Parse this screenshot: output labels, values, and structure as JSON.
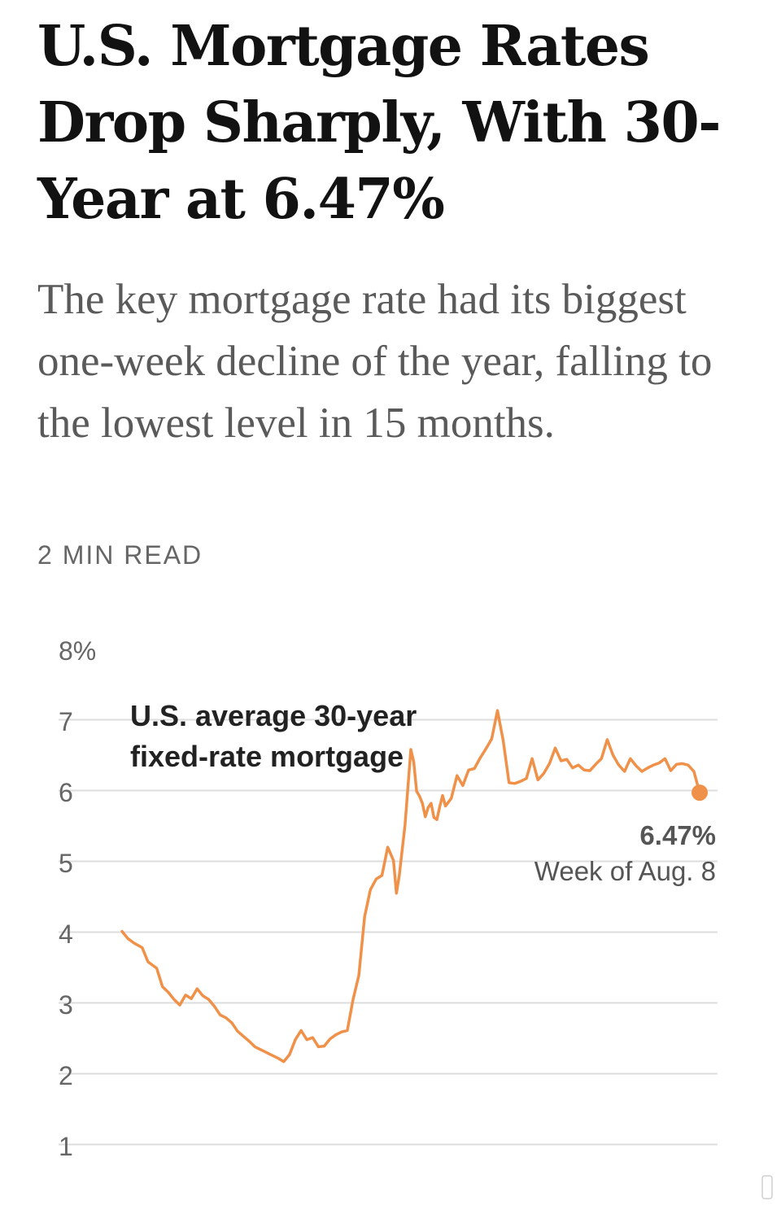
{
  "article": {
    "headline": "U.S. Mortgage Rates Drop Sharply, With 30-Year at 6.47%",
    "summary": "The key mortgage rate had its biggest one-week decline of the year, falling to the lowest level in 15 months.",
    "read_time": "2 MIN READ"
  },
  "chart_data": {
    "type": "line",
    "title": "U.S. average 30-year fixed-rate mortgage",
    "ylim": [
      0.5,
      8
    ],
    "y_ticks": [
      "8%",
      "7",
      "6",
      "5",
      "4",
      "3",
      "2",
      "1"
    ],
    "y_tick_values": [
      8,
      7,
      6,
      5,
      4,
      3,
      2,
      1
    ],
    "grid": true,
    "line_color": "#f0914a",
    "series": [
      {
        "x": [
          0.0,
          0.01,
          0.02,
          0.035,
          0.045,
          0.06,
          0.07,
          0.08,
          0.09,
          0.1,
          0.11,
          0.12,
          0.13,
          0.14,
          0.15,
          0.16,
          0.17,
          0.18,
          0.19,
          0.2,
          0.21,
          0.22,
          0.23,
          0.24,
          0.25,
          0.26,
          0.27,
          0.28,
          0.29,
          0.3,
          0.31,
          0.32,
          0.33,
          0.34,
          0.35,
          0.36,
          0.37,
          0.38,
          0.39,
          0.4,
          0.41,
          0.42,
          0.43,
          0.44,
          0.45,
          0.46,
          0.47,
          0.475,
          0.48,
          0.49,
          0.5,
          0.505,
          0.51,
          0.515,
          0.52,
          0.525,
          0.53,
          0.535,
          0.54,
          0.545,
          0.55,
          0.555,
          0.56,
          0.57,
          0.58,
          0.59,
          0.6,
          0.61,
          0.62,
          0.63,
          0.64,
          0.65,
          0.66,
          0.67,
          0.68,
          0.69,
          0.7,
          0.71,
          0.72,
          0.73,
          0.74,
          0.75,
          0.76,
          0.77,
          0.78,
          0.79,
          0.8,
          0.81,
          0.82,
          0.83,
          0.84,
          0.85,
          0.86,
          0.87,
          0.88,
          0.89,
          0.9,
          0.91,
          0.92,
          0.93,
          0.94,
          0.95,
          0.96,
          0.97,
          0.98,
          0.99,
          1.0
        ],
        "y": [
          4.51,
          4.41,
          4.35,
          4.28,
          4.08,
          3.99,
          3.73,
          3.65,
          3.55,
          3.47,
          3.61,
          3.56,
          3.7,
          3.6,
          3.55,
          3.45,
          3.33,
          3.29,
          3.22,
          3.1,
          3.03,
          2.96,
          2.88,
          2.84,
          2.8,
          2.76,
          2.72,
          2.67,
          2.77,
          2.98,
          3.11,
          2.98,
          3.01,
          2.88,
          2.89,
          2.99,
          3.05,
          3.09,
          3.11,
          3.55,
          3.89,
          4.72,
          5.1,
          5.25,
          5.3,
          5.7,
          5.51,
          5.05,
          5.3,
          6.02,
          7.08,
          6.9,
          6.49,
          6.42,
          6.32,
          6.13,
          6.26,
          6.32,
          6.12,
          6.09,
          6.27,
          6.43,
          6.28,
          6.39,
          6.71,
          6.57,
          6.79,
          6.81,
          6.96,
          7.09,
          7.23,
          7.63,
          7.2,
          6.61,
          6.6,
          6.63,
          6.67,
          6.95,
          6.65,
          6.74,
          6.88,
          7.1,
          6.92,
          6.94,
          6.82,
          6.86,
          6.79,
          6.78,
          6.87,
          6.95,
          7.22,
          7.0,
          6.86,
          6.77,
          6.95,
          6.85,
          6.77,
          6.82,
          6.86,
          6.89,
          6.95,
          6.78,
          6.87,
          6.88,
          6.86,
          6.77,
          6.47
        ]
      }
    ],
    "annotation": {
      "value_label": "6.47%",
      "date_label": "Week of Aug. 8"
    }
  }
}
